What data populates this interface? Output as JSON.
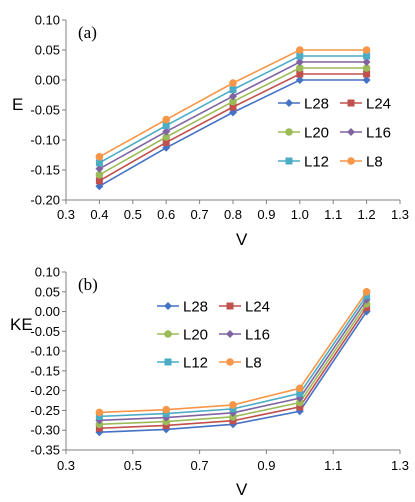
{
  "chart_data": [
    {
      "type": "line",
      "panel_label": "(a)",
      "xlabel": "V",
      "ylabel": "E",
      "xlim": [
        0.3,
        1.3
      ],
      "ylim": [
        -0.2,
        0.1
      ],
      "xticks": [
        "0.3",
        "0.4",
        "0.5",
        "0.6",
        "0.7",
        "0.8",
        "0.9",
        "1.0",
        "1.1",
        "1.2",
        "1.3"
      ],
      "yticks": [
        "-0.20",
        "-0.15",
        "-0.10",
        "-0.05",
        "0.00",
        "0.05",
        "0.10"
      ],
      "x": [
        0.4,
        0.6,
        0.8,
        1.0,
        1.2
      ],
      "legend_position": "bottom-right",
      "series": [
        {
          "name": "L28",
          "marker": "diamond",
          "color": "#4472C4",
          "values": [
            -0.177,
            -0.113,
            -0.054,
            0.0,
            0.0
          ]
        },
        {
          "name": "L24",
          "marker": "square",
          "color": "#C0504D",
          "values": [
            -0.168,
            -0.104,
            -0.045,
            0.01,
            0.01
          ]
        },
        {
          "name": "L20",
          "marker": "circle",
          "color": "#9BBB59",
          "values": [
            -0.158,
            -0.095,
            -0.036,
            0.02,
            0.02
          ]
        },
        {
          "name": "L16",
          "marker": "diamond",
          "color": "#8064A2",
          "values": [
            -0.148,
            -0.086,
            -0.027,
            0.03,
            0.03
          ]
        },
        {
          "name": "L12",
          "marker": "square",
          "color": "#4BACC6",
          "values": [
            -0.138,
            -0.076,
            -0.016,
            0.04,
            0.04
          ]
        },
        {
          "name": "L8",
          "marker": "circle",
          "color": "#F79646",
          "values": [
            -0.128,
            -0.066,
            -0.005,
            0.05,
            0.05
          ]
        }
      ]
    },
    {
      "type": "line",
      "panel_label": "(b)",
      "xlabel": "V",
      "ylabel": "KE",
      "xlim": [
        0.3,
        1.3
      ],
      "ylim": [
        -0.35,
        0.1
      ],
      "xticks": [
        "0.3",
        "0.5",
        "0.7",
        "0.9",
        "1.1",
        "1.3"
      ],
      "yticks": [
        "-0.35",
        "-0.30",
        "-0.25",
        "-0.20",
        "-0.15",
        "-0.10",
        "-0.05",
        "0.00",
        "0.05",
        "0.10"
      ],
      "x": [
        0.4,
        0.6,
        0.8,
        1.0,
        1.2
      ],
      "legend_position": "top-left",
      "series": [
        {
          "name": "L28",
          "marker": "diamond",
          "color": "#4472C4",
          "values": [
            -0.305,
            -0.298,
            -0.285,
            -0.252,
            0.0
          ]
        },
        {
          "name": "L24",
          "marker": "square",
          "color": "#C0504D",
          "values": [
            -0.295,
            -0.288,
            -0.276,
            -0.241,
            0.01
          ]
        },
        {
          "name": "L20",
          "marker": "circle",
          "color": "#9BBB59",
          "values": [
            -0.285,
            -0.278,
            -0.266,
            -0.23,
            0.02
          ]
        },
        {
          "name": "L16",
          "marker": "diamond",
          "color": "#8064A2",
          "values": [
            -0.275,
            -0.268,
            -0.256,
            -0.219,
            0.03
          ]
        },
        {
          "name": "L12",
          "marker": "square",
          "color": "#4BACC6",
          "values": [
            -0.265,
            -0.258,
            -0.246,
            -0.207,
            0.04
          ]
        },
        {
          "name": "L8",
          "marker": "circle",
          "color": "#F79646",
          "values": [
            -0.255,
            -0.248,
            -0.236,
            -0.194,
            0.05
          ]
        }
      ]
    }
  ]
}
